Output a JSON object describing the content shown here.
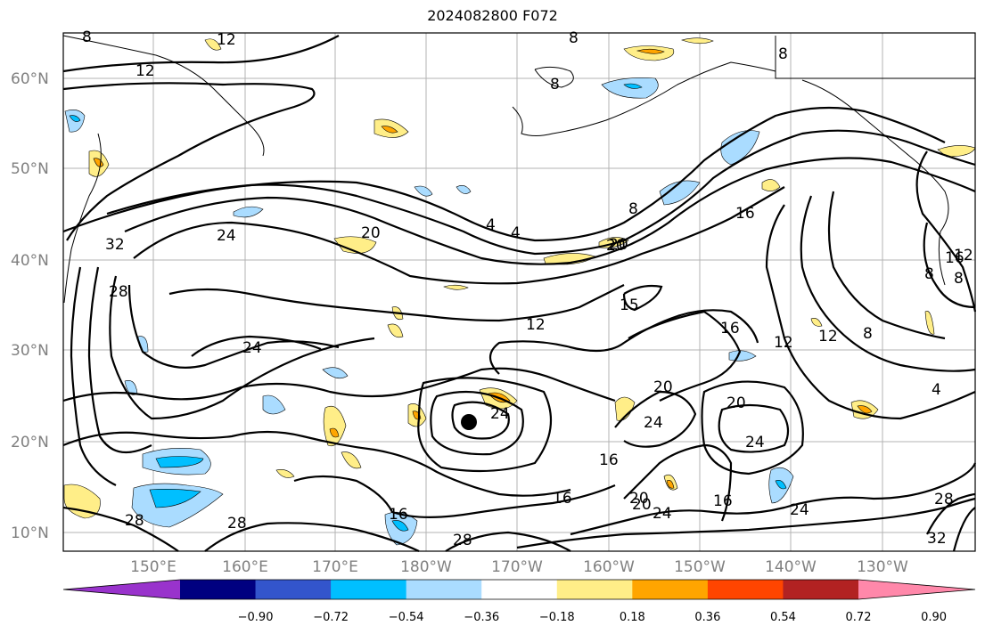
{
  "title": "2024082800 F072",
  "lat_labels": [
    "60°N",
    "50°N",
    "40°N",
    "30°N",
    "20°N",
    "10°N"
  ],
  "lon_labels": [
    "150°E",
    "160°E",
    "170°E",
    "180°W",
    "170°W",
    "160°W",
    "150°W",
    "140°W",
    "130°W"
  ],
  "colorbar": {
    "ticks": [
      "−0.90",
      "−0.72",
      "−0.54",
      "−0.36",
      "−0.18",
      "0.18",
      "0.36",
      "0.54",
      "0.72",
      "0.90"
    ],
    "colors": [
      "#9933cc",
      "#000080",
      "#3355cc",
      "#00bfff",
      "#aadcff",
      "#ffffff",
      "#ffee88",
      "#ffa500",
      "#ff4500",
      "#b22222",
      "#ff88aa"
    ]
  },
  "contour_labels": [
    "8",
    "12",
    "8",
    "8",
    "8",
    "12",
    "16",
    "20",
    "24",
    "32",
    "28",
    "20",
    "4",
    "4",
    "8",
    "20",
    "16",
    "12",
    "15",
    "12",
    "16",
    "12",
    "8",
    "4",
    "24",
    "24",
    "20",
    "20",
    "24",
    "20",
    "24",
    "16",
    "16",
    "16",
    "20",
    "24",
    "16",
    "28",
    "28",
    "28",
    "24",
    "28",
    "32",
    "8",
    "12",
    "8"
  ],
  "marker": "storm-center"
}
